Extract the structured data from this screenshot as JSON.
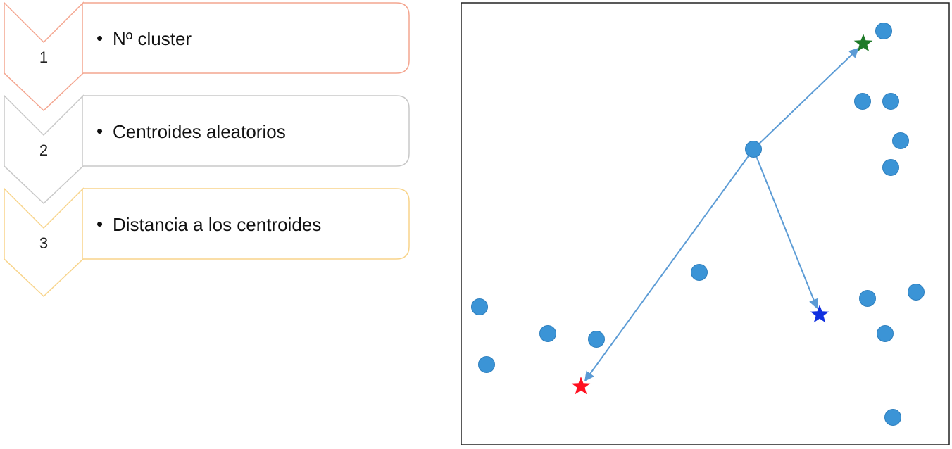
{
  "steps": [
    {
      "number": "1",
      "bullet": "•",
      "text": "Nº cluster",
      "color": "#F4A58F"
    },
    {
      "number": "2",
      "bullet": "•",
      "text": "Centroides aleatorios",
      "color": "#C8C8C8"
    },
    {
      "number": "3",
      "bullet": "•",
      "text": "Distancia a los centroides",
      "color": "#F8D48A"
    }
  ],
  "scatter": {
    "point_color": "#3B94D6",
    "arrow_color": "#5B9BD5",
    "points": [
      [
        600,
        40
      ],
      [
        570,
        140
      ],
      [
        610,
        140
      ],
      [
        624,
        196
      ],
      [
        610,
        234
      ],
      [
        415,
        208
      ],
      [
        338,
        383
      ],
      [
        26,
        432
      ],
      [
        123,
        470
      ],
      [
        192,
        478
      ],
      [
        36,
        514
      ],
      [
        577,
        420
      ],
      [
        646,
        411
      ],
      [
        602,
        470
      ],
      [
        613,
        589
      ]
    ],
    "source_point": [
      415,
      208
    ],
    "centroids": [
      {
        "name": "green",
        "color": "#1E7A28",
        "pos": [
          571,
          58
        ]
      },
      {
        "name": "blue",
        "color": "#1030E0",
        "pos": [
          509,
          443
        ]
      },
      {
        "name": "red",
        "color": "#FF1020",
        "pos": [
          170,
          545
        ]
      }
    ]
  }
}
